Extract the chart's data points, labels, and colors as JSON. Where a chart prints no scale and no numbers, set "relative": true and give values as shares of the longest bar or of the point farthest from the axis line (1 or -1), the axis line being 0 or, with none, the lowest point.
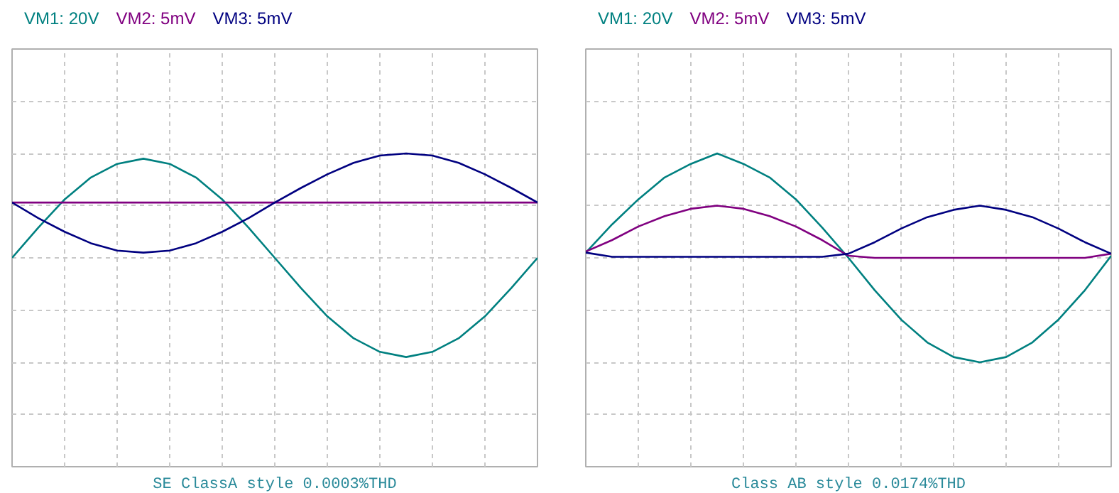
{
  "chart_data": [
    {
      "type": "line",
      "title": "SE ClassA style 0.0003%THD",
      "relative": true,
      "grid": true,
      "tick_labels": false,
      "legend": "top left",
      "categories": [
        null,
        null,
        null,
        null,
        null,
        null,
        null,
        null,
        null,
        null,
        null,
        null,
        null,
        null,
        null,
        null,
        null,
        null,
        null,
        null,
        null
      ],
      "series": [
        {
          "name": "VM1: 20V",
          "color": "#008080",
          "values": [
            0,
            0.29,
            0.56,
            0.77,
            0.9,
            0.95,
            0.9,
            0.77,
            0.56,
            0.29,
            0,
            -0.29,
            -0.56,
            -0.77,
            -0.9,
            -0.95,
            -0.9,
            -0.77,
            -0.56,
            -0.29,
            0
          ]
        },
        {
          "name": "VM2: 5mV",
          "color": "#800080",
          "values": [
            0.53,
            0.53,
            0.53,
            0.53,
            0.53,
            0.53,
            0.53,
            0.53,
            0.53,
            0.53,
            0.53,
            0.53,
            0.53,
            0.53,
            0.53,
            0.53,
            0.53,
            0.53,
            0.53,
            0.53,
            0.53
          ]
        },
        {
          "name": "VM3: 5mV",
          "color": "#000080",
          "values": [
            0.53,
            0.38,
            0.25,
            0.14,
            0.07,
            0.05,
            0.07,
            0.14,
            0.25,
            0.38,
            0.53,
            0.67,
            0.8,
            0.91,
            0.98,
            1,
            0.98,
            0.91,
            0.8,
            0.67,
            0.53
          ]
        }
      ]
    },
    {
      "type": "line",
      "title": "Class AB style 0.0174%THD",
      "relative": true,
      "grid": true,
      "tick_labels": false,
      "legend": "top left",
      "categories": [
        null,
        null,
        null,
        null,
        null,
        null,
        null,
        null,
        null,
        null,
        null,
        null,
        null,
        null,
        null,
        null,
        null,
        null,
        null,
        null,
        null
      ],
      "series": [
        {
          "name": "VM1: 20V",
          "color": "#008080",
          "values": [
            0.05,
            0.32,
            0.56,
            0.77,
            0.9,
            1,
            0.9,
            0.77,
            0.56,
            0.29,
            0,
            -0.31,
            -0.59,
            -0.81,
            -0.95,
            -1,
            -0.95,
            -0.81,
            -0.59,
            -0.31,
            0.02
          ]
        },
        {
          "name": "VM2: 5mV",
          "color": "#800080",
          "values": [
            0.06,
            0.17,
            0.3,
            0.4,
            0.47,
            0.5,
            0.47,
            0.4,
            0.3,
            0.17,
            0.02,
            0,
            0,
            0,
            0,
            0,
            0,
            0,
            0,
            0,
            0.04
          ]
        },
        {
          "name": "VM3: 5mV",
          "color": "#000080",
          "values": [
            0.05,
            0.01,
            0.01,
            0.01,
            0.01,
            0.01,
            0.01,
            0.01,
            0.01,
            0.01,
            0.04,
            0.15,
            0.28,
            0.39,
            0.46,
            0.5,
            0.46,
            0.39,
            0.28,
            0.15,
            0.04
          ]
        }
      ]
    }
  ]
}
